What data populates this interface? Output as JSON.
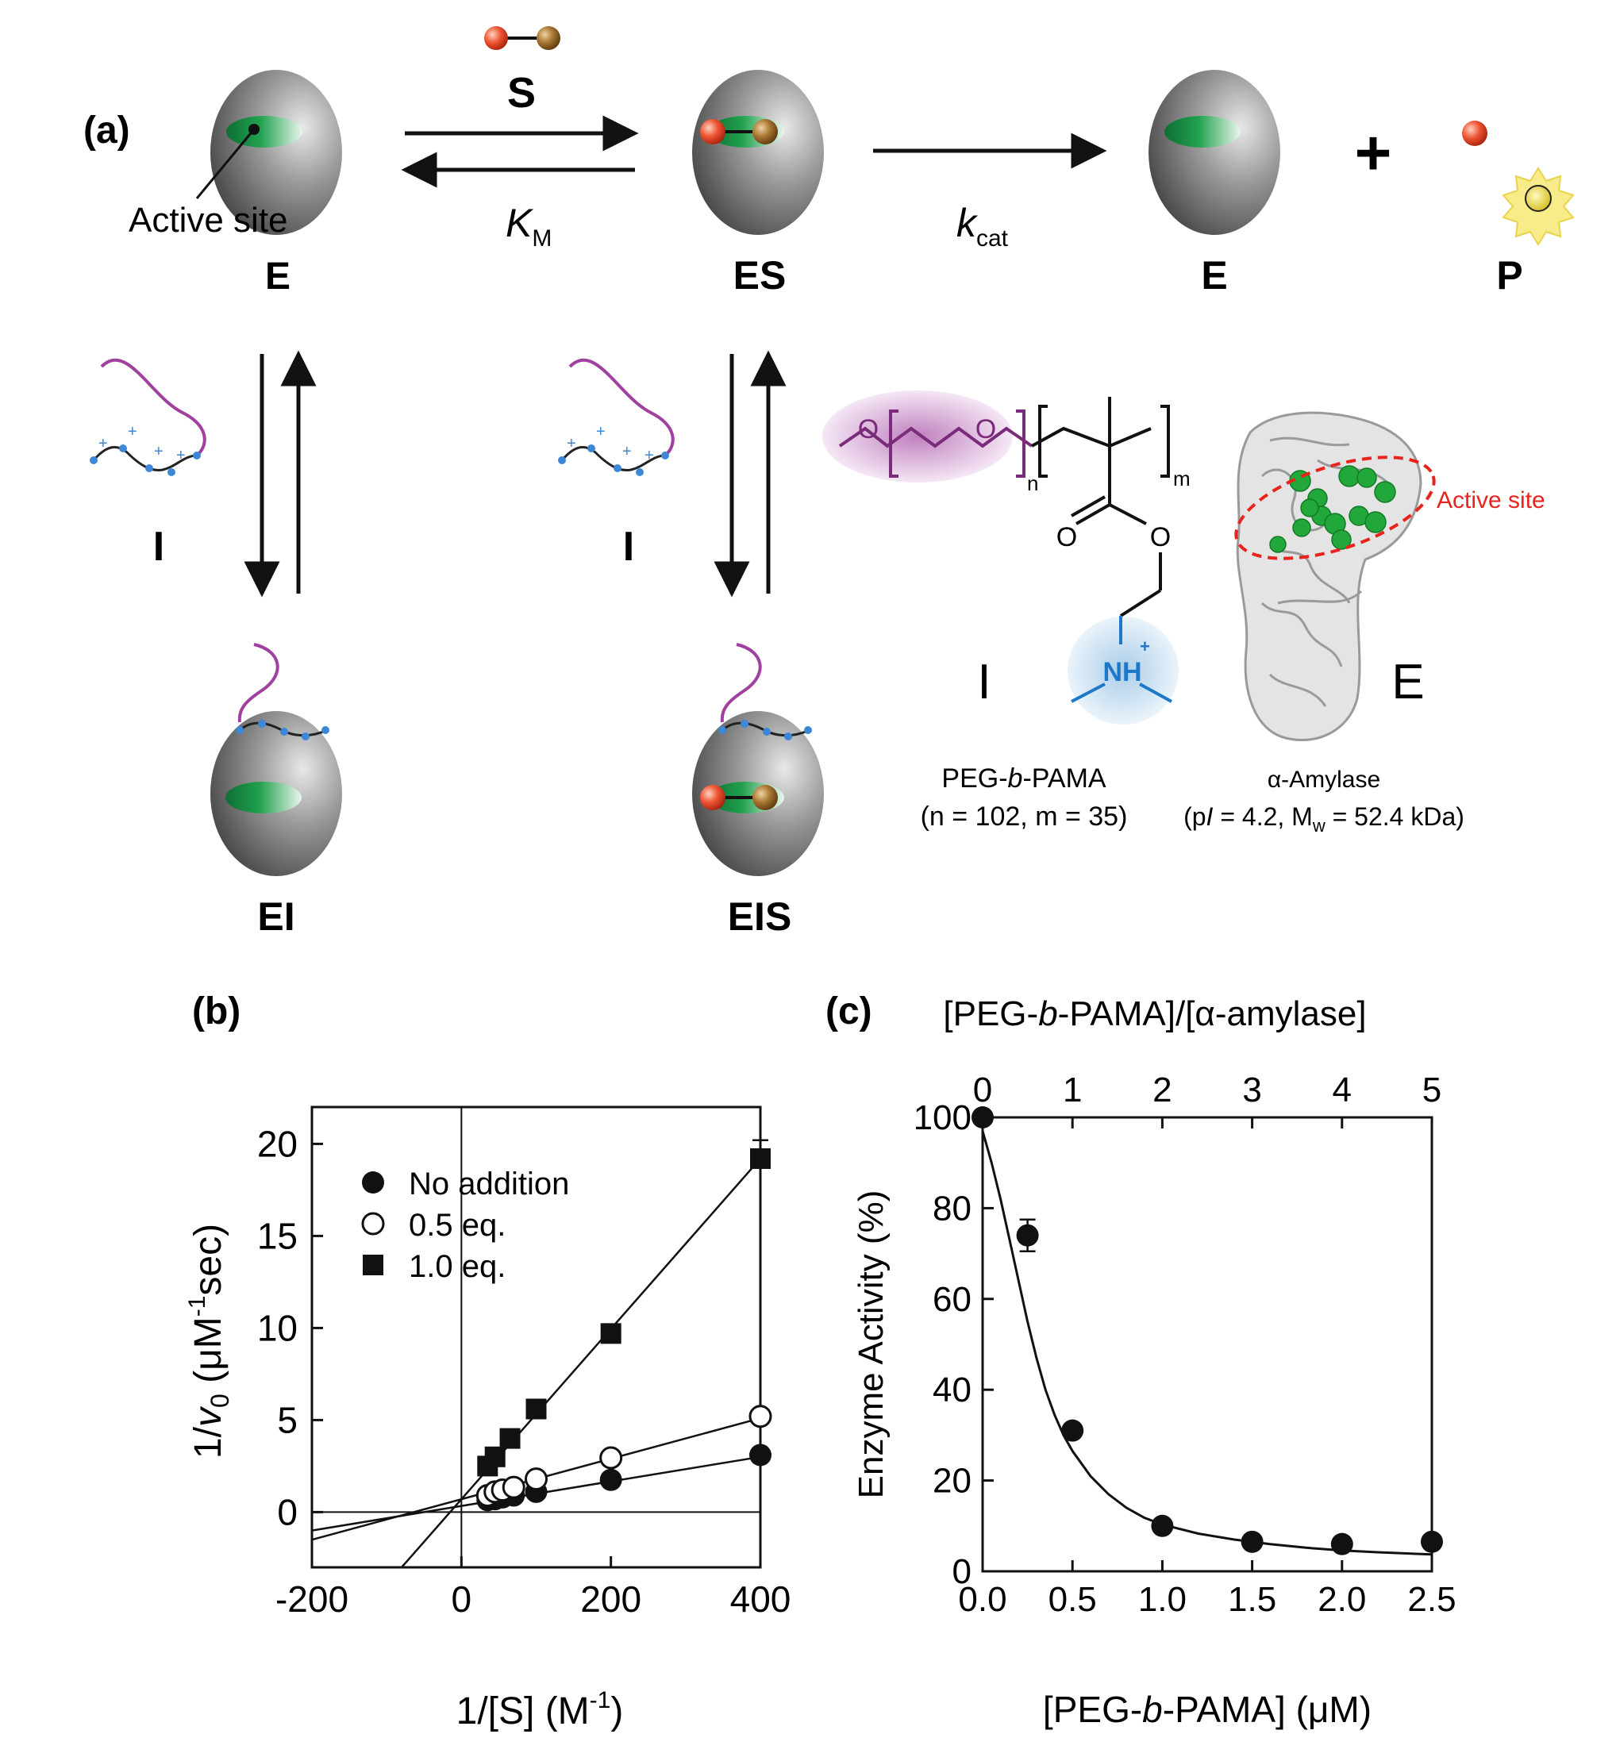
{
  "panel_a": {
    "label": "(a)",
    "active_site_label": "Active site",
    "substrate_label": "S",
    "km": {
      "main": "K",
      "sub": "M"
    },
    "kcat": {
      "main": "k",
      "sub": "cat"
    },
    "states": {
      "e_left": "E",
      "es": "ES",
      "e_right": "E",
      "p": "P",
      "ei": "EI",
      "eis": "EIS"
    },
    "plus": "+",
    "inhibitor_left": "I",
    "inhibitor_mid": "I",
    "structure": {
      "i_label": "I",
      "e_label": "E",
      "o_label": "O",
      "nh_label": "NH",
      "plus_sign": "+",
      "n_sub": "n",
      "m_sub": "m",
      "polymer_name_pre": "PEG-",
      "polymer_name_italic": "b",
      "polymer_name_post": "-PAMA",
      "polymer_params": "(n = 102, m = 35)",
      "enzyme_name": "α-Amylase",
      "enzyme_params_pre": "(p",
      "enzyme_params_italic": "I",
      "enzyme_params_mid": " = 4.2, M",
      "enzyme_params_sub": "w",
      "enzyme_params_post": " = 52.4 kDa)",
      "active_site_red": "Active site"
    },
    "colors": {
      "enzyme_gray": "#8a8a8a",
      "active_site_green": "#1f9a4f",
      "substrate_red": "#e0442a",
      "substrate_brown": "#9a6b2a",
      "polymer_purple": "#a0409f",
      "amine_blue": "#1e78c8",
      "product_yellow": "#f5e66a",
      "annotation_red": "#e8231b"
    }
  },
  "chart_data": [
    {
      "type": "line",
      "panel_label": "(b)",
      "title": "",
      "xlabel_parts": [
        "1/[S] (M",
        "-1",
        ")"
      ],
      "ylabel_parts": [
        "1/",
        "v",
        "0",
        " (μM",
        "-1",
        "sec)"
      ],
      "xlim": [
        -200,
        400
      ],
      "ylim": [
        -3,
        22
      ],
      "xticks": [
        -200,
        0,
        200,
        400
      ],
      "xtick_labels": [
        "-200",
        "0",
        "200",
        "400"
      ],
      "yticks": [
        0,
        5,
        10,
        15,
        20
      ],
      "ytick_labels": [
        "0",
        "5",
        "10",
        "15",
        "20"
      ],
      "zero_lines": true,
      "legend_position": "top-left",
      "series": [
        {
          "name": "No addition",
          "marker": "filled-circle",
          "points": [
            [
              35,
              0.65
            ],
            [
              45,
              0.7
            ],
            [
              55,
              0.8
            ],
            [
              70,
              0.9
            ],
            [
              100,
              1.1
            ],
            [
              200,
              1.75
            ],
            [
              400,
              3.1
            ]
          ],
          "fit": [
            [
              -200,
              -1.0
            ],
            [
              400,
              3.0
            ]
          ]
        },
        {
          "name": "0.5 eq.",
          "marker": "open-circle",
          "points": [
            [
              35,
              0.9
            ],
            [
              45,
              1.1
            ],
            [
              55,
              1.2
            ],
            [
              70,
              1.35
            ],
            [
              100,
              1.8
            ],
            [
              200,
              2.95
            ],
            [
              400,
              5.2
            ]
          ],
          "fit": [
            [
              -200,
              -1.5
            ],
            [
              400,
              5.1
            ]
          ]
        },
        {
          "name": "1.0 eq.",
          "marker": "filled-square",
          "points": [
            [
              35,
              2.5
            ],
            [
              45,
              3.0
            ],
            [
              65,
              4.0
            ],
            [
              100,
              5.6
            ],
            [
              200,
              9.7
            ],
            [
              400,
              19.2
            ]
          ],
          "fit": [
            [
              -80,
              -3
            ],
            [
              400,
              19.2
            ]
          ],
          "error_bars": [
            {
              "x": 400,
              "y": 19.2,
              "err": 1.0
            }
          ]
        }
      ]
    },
    {
      "type": "scatter",
      "panel_label": "(c)",
      "title": "",
      "top_xlabel_parts": [
        "[PEG-",
        "b",
        "-PAMA]/[α-amylase]"
      ],
      "xlabel_parts": [
        "[PEG-",
        "b",
        "-PAMA] (μM)"
      ],
      "ylabel": "Enzyme Activity (%)",
      "xlim": [
        0,
        2.5
      ],
      "ylim": [
        0,
        100
      ],
      "xticks": [
        0,
        0.5,
        1.0,
        1.5,
        2.0,
        2.5
      ],
      "xtick_labels": [
        "0.0",
        "0.5",
        "1.0",
        "1.5",
        "2.0",
        "2.5"
      ],
      "top_xlim": [
        0,
        5
      ],
      "top_xticks": [
        0,
        1,
        2,
        3,
        4,
        5
      ],
      "top_xtick_labels": [
        "0",
        "1",
        "2",
        "3",
        "4",
        "5"
      ],
      "yticks": [
        0,
        20,
        40,
        60,
        80,
        100
      ],
      "ytick_labels": [
        "0",
        "20",
        "40",
        "60",
        "80",
        "100"
      ],
      "series": [
        {
          "name": "",
          "marker": "filled-circle",
          "points": [
            [
              0,
              100
            ],
            [
              0.25,
              74
            ],
            [
              0.5,
              31
            ],
            [
              1.0,
              10
            ],
            [
              1.5,
              6.5
            ],
            [
              2.0,
              6
            ],
            [
              2.5,
              6.5
            ]
          ],
          "errors": [
            0,
            3.5,
            0,
            0,
            0,
            0,
            0
          ]
        }
      ],
      "fit_curve": {
        "x": [
          0,
          0.05,
          0.1,
          0.15,
          0.2,
          0.25,
          0.3,
          0.35,
          0.4,
          0.45,
          0.5,
          0.6,
          0.7,
          0.8,
          0.9,
          1.0,
          1.2,
          1.4,
          1.6,
          1.8,
          2.0,
          2.2,
          2.5
        ],
        "y": [
          97,
          90,
          82,
          73,
          64,
          55,
          47,
          40,
          34.5,
          30,
          26.5,
          21,
          17,
          14,
          11.8,
          10.3,
          8.3,
          7,
          6,
          5.2,
          4.6,
          4.2,
          3.7
        ]
      }
    }
  ]
}
